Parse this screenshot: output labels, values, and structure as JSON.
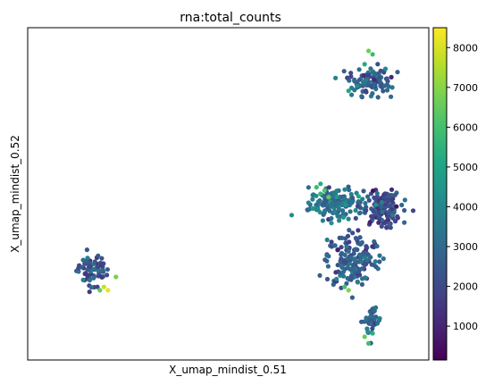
{
  "chart_data": {
    "type": "scatter",
    "title": "rna:total_counts",
    "xlabel": "X_umap_mindist_0.51",
    "ylabel": "X_umap_mindist_0.52",
    "colorbar": {
      "colormap": "viridis",
      "range": [
        150,
        8500
      ],
      "ticks": [
        1000,
        2000,
        3000,
        4000,
        5000,
        6000,
        7000,
        8000
      ],
      "tick_labels": [
        "1000",
        "2000",
        "3000",
        "4000",
        "5000",
        "6000",
        "7000",
        "8000"
      ]
    },
    "xlim": [
      0,
      100
    ],
    "ylim": [
      0,
      100
    ],
    "clusters": [
      {
        "center": [
          16,
          27
        ],
        "spread": [
          3.5,
          4.5
        ],
        "count": 70,
        "mean": 2300
      },
      {
        "center": [
          77,
          47
        ],
        "spread": [
          6,
          4
        ],
        "count": 150,
        "mean": 3300
      },
      {
        "center": [
          88,
          46
        ],
        "spread": [
          4.5,
          5
        ],
        "count": 160,
        "mean": 2200
      },
      {
        "center": [
          81,
          30
        ],
        "spread": [
          6,
          7
        ],
        "count": 170,
        "mean": 2500
      },
      {
        "center": [
          85,
          84
        ],
        "spread": [
          5,
          4
        ],
        "count": 110,
        "mean": 2700
      },
      {
        "center": [
          86,
          12
        ],
        "spread": [
          1.8,
          4
        ],
        "count": 45,
        "mean": 2900
      }
    ],
    "highlight_points": [
      {
        "x": 74,
        "y": 51,
        "value": 6200
      },
      {
        "x": 73,
        "y": 50,
        "value": 5600
      },
      {
        "x": 75,
        "y": 49,
        "value": 6500
      },
      {
        "x": 72,
        "y": 52,
        "value": 5900
      },
      {
        "x": 73,
        "y": 53,
        "value": 5300
      },
      {
        "x": 85,
        "y": 93,
        "value": 6600
      },
      {
        "x": 86,
        "y": 92,
        "value": 5800
      },
      {
        "x": 84,
        "y": 89,
        "value": 5300
      },
      {
        "x": 80,
        "y": 81,
        "value": 5100
      },
      {
        "x": 19,
        "y": 22,
        "value": 7800
      },
      {
        "x": 20,
        "y": 21,
        "value": 8200
      },
      {
        "x": 18,
        "y": 21,
        "value": 6500
      },
      {
        "x": 22,
        "y": 25,
        "value": 6800
      },
      {
        "x": 80,
        "y": 21,
        "value": 6900
      },
      {
        "x": 79,
        "y": 22,
        "value": 6000
      },
      {
        "x": 84,
        "y": 7,
        "value": 6600
      },
      {
        "x": 85,
        "y": 5,
        "value": 5900
      },
      {
        "x": 86,
        "y": 8,
        "value": 5400
      }
    ]
  }
}
